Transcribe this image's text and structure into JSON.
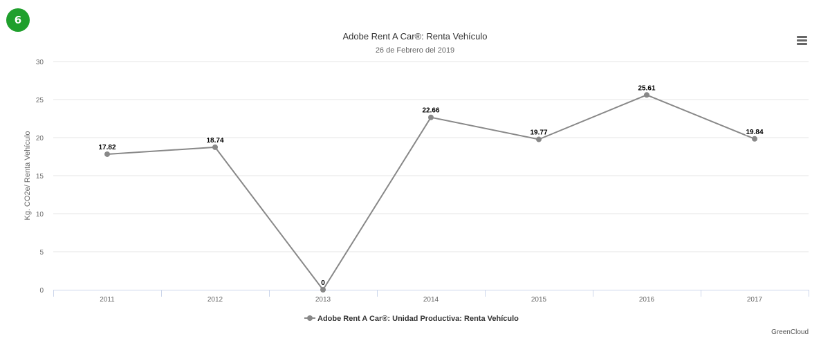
{
  "badge": {
    "number": "6",
    "color": "#1f9f2c"
  },
  "menu": {
    "icon": "hamburger-menu-icon"
  },
  "credits": "GreenCloud",
  "chart_data": {
    "type": "line",
    "title": "Adobe Rent A Car®: Renta Vehículo",
    "subtitle": "26 de Febrero del 2019",
    "xlabel": "",
    "ylabel": "Kg. CO2e/ Renta Vehículo",
    "categories": [
      "2011",
      "2012",
      "2013",
      "2014",
      "2015",
      "2016",
      "2017"
    ],
    "ylim": [
      0,
      30
    ],
    "yticks": [
      0,
      5,
      10,
      15,
      20,
      25,
      30
    ],
    "grid": true,
    "legend_position": "bottom-center",
    "series": [
      {
        "name": "Adobe Rent A Car®: Unidad Productiva: Renta Vehículo",
        "values": [
          17.82,
          18.74,
          0,
          22.66,
          19.77,
          25.61,
          19.84
        ],
        "labels": [
          "17.82",
          "18.74",
          "0",
          "22.66",
          "19.77",
          "25.61",
          "19.84"
        ],
        "color": "#888888"
      }
    ]
  }
}
